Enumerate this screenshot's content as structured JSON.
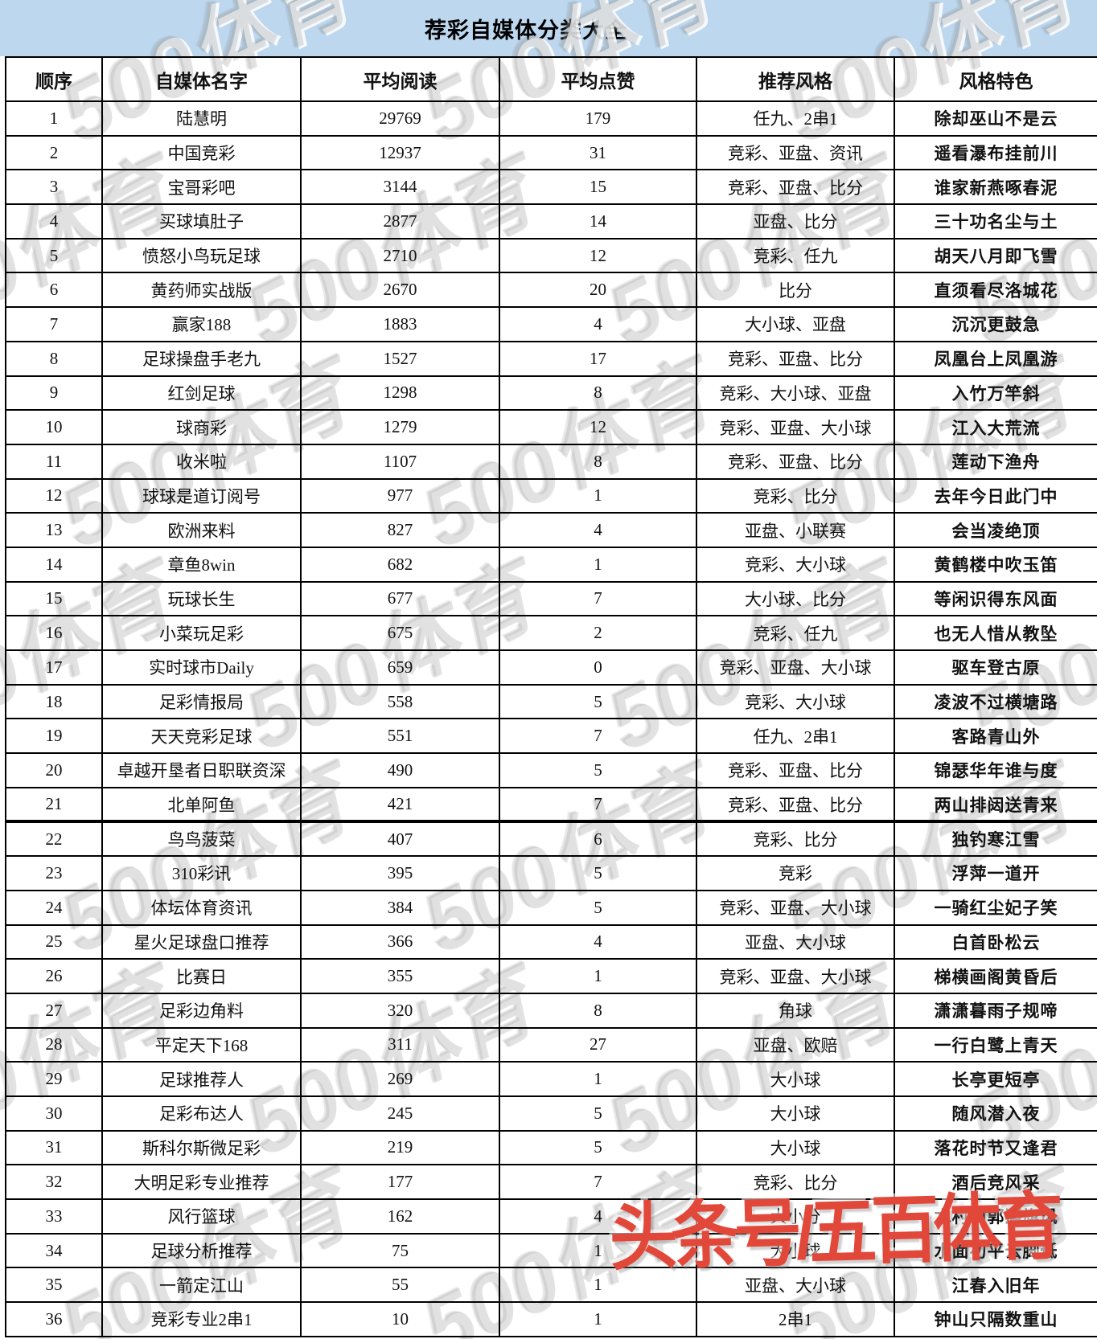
{
  "title": "荐彩自媒体分类大全",
  "columns": [
    "顺序",
    "自媒体名字",
    "平均阅读",
    "平均点赞",
    "推荐风格",
    "风格特色"
  ],
  "rows": [
    {
      "order": "1",
      "name": "陆慧明",
      "reads": "29769",
      "likes": "179",
      "style": "任九、2串1",
      "feature": "除却巫山不是云"
    },
    {
      "order": "2",
      "name": "中国竞彩",
      "reads": "12937",
      "likes": "31",
      "style": "竞彩、亚盘、资讯",
      "feature": "遥看瀑布挂前川"
    },
    {
      "order": "3",
      "name": "宝哥彩吧",
      "reads": "3144",
      "likes": "15",
      "style": "竞彩、亚盘、比分",
      "feature": "谁家新燕啄春泥"
    },
    {
      "order": "4",
      "name": "买球填肚子",
      "reads": "2877",
      "likes": "14",
      "style": "亚盘、比分",
      "feature": "三十功名尘与土"
    },
    {
      "order": "5",
      "name": "愤怒小鸟玩足球",
      "reads": "2710",
      "likes": "12",
      "style": "竞彩、任九",
      "feature": "胡天八月即飞雪"
    },
    {
      "order": "6",
      "name": "黄药师实战版",
      "reads": "2670",
      "likes": "20",
      "style": "比分",
      "feature": "直须看尽洛城花"
    },
    {
      "order": "7",
      "name": "赢家188",
      "reads": "1883",
      "likes": "4",
      "style": "大小球、亚盘",
      "feature": "沉沉更鼓急"
    },
    {
      "order": "8",
      "name": "足球操盘手老九",
      "reads": "1527",
      "likes": "17",
      "style": "竞彩、亚盘、比分",
      "feature": "凤凰台上凤凰游"
    },
    {
      "order": "9",
      "name": "红剑足球",
      "reads": "1298",
      "likes": "8",
      "style": "竞彩、大小球、亚盘",
      "feature": "入竹万竿斜"
    },
    {
      "order": "10",
      "name": "球商彩",
      "reads": "1279",
      "likes": "12",
      "style": "竞彩、亚盘、大小球",
      "feature": "江入大荒流"
    },
    {
      "order": "11",
      "name": "收米啦",
      "reads": "1107",
      "likes": "8",
      "style": "竞彩、亚盘、比分",
      "feature": "莲动下渔舟"
    },
    {
      "order": "12",
      "name": "球球是道订阅号",
      "reads": "977",
      "likes": "1",
      "style": "竞彩、比分",
      "feature": "去年今日此门中"
    },
    {
      "order": "13",
      "name": "欧洲来料",
      "reads": "827",
      "likes": "4",
      "style": "亚盘、小联赛",
      "feature": "会当凌绝顶"
    },
    {
      "order": "14",
      "name": "章鱼8win",
      "reads": "682",
      "likes": "1",
      "style": "竞彩、大小球",
      "feature": "黄鹤楼中吹玉笛"
    },
    {
      "order": "15",
      "name": "玩球长生",
      "reads": "677",
      "likes": "7",
      "style": "大小球、比分",
      "feature": "等闲识得东风面"
    },
    {
      "order": "16",
      "name": "小菜玩足彩",
      "reads": "675",
      "likes": "2",
      "style": "竞彩、任九",
      "feature": "也无人惜从教坠"
    },
    {
      "order": "17",
      "name": "实时球市Daily",
      "reads": "659",
      "likes": "0",
      "style": "竞彩、亚盘、大小球",
      "feature": "驱车登古原"
    },
    {
      "order": "18",
      "name": "足彩情报局",
      "reads": "558",
      "likes": "5",
      "style": "竞彩、大小球",
      "feature": "凌波不过横塘路"
    },
    {
      "order": "19",
      "name": "天天竞彩足球",
      "reads": "551",
      "likes": "7",
      "style": "任九、2串1",
      "feature": "客路青山外"
    },
    {
      "order": "20",
      "name": "卓越开垦者日职联资深",
      "reads": "490",
      "likes": "5",
      "style": "竞彩、亚盘、比分",
      "feature": "锦瑟华年谁与度"
    },
    {
      "order": "21",
      "name": "北单阿鱼",
      "reads": "421",
      "likes": "7",
      "style": "竞彩、亚盘、比分",
      "feature": "两山排闼送青来"
    },
    {
      "order": "22",
      "name": "鸟鸟菠菜",
      "reads": "407",
      "likes": "6",
      "style": "竞彩、比分",
      "feature": "独钓寒江雪"
    },
    {
      "order": "23",
      "name": "310彩讯",
      "reads": "395",
      "likes": "5",
      "style": "竞彩",
      "feature": "浮萍一道开"
    },
    {
      "order": "24",
      "name": "体坛体育资讯",
      "reads": "384",
      "likes": "5",
      "style": "竞彩、亚盘、大小球",
      "feature": "一骑红尘妃子笑"
    },
    {
      "order": "25",
      "name": "星火足球盘口推荐",
      "reads": "366",
      "likes": "4",
      "style": "亚盘、大小球",
      "feature": "白首卧松云"
    },
    {
      "order": "26",
      "name": "比赛日",
      "reads": "355",
      "likes": "1",
      "style": "竞彩、亚盘、大小球",
      "feature": "梯横画阁黄昏后"
    },
    {
      "order": "27",
      "name": "足彩边角料",
      "reads": "320",
      "likes": "8",
      "style": "角球",
      "feature": "潇潇暮雨子规啼"
    },
    {
      "order": "28",
      "name": "平定天下168",
      "reads": "311",
      "likes": "27",
      "style": "亚盘、欧赔",
      "feature": "一行白鹭上青天"
    },
    {
      "order": "29",
      "name": "足球推荐人",
      "reads": "269",
      "likes": "1",
      "style": "大小球",
      "feature": "长亭更短亭"
    },
    {
      "order": "30",
      "name": "足彩布达人",
      "reads": "245",
      "likes": "5",
      "style": "大小球",
      "feature": "随风潜入夜"
    },
    {
      "order": "31",
      "name": "斯科尔斯微足彩",
      "reads": "219",
      "likes": "5",
      "style": "大小球",
      "feature": "落花时节又逢君"
    },
    {
      "order": "32",
      "name": "大明足彩专业推荐",
      "reads": "177",
      "likes": "7",
      "style": "竞彩、比分",
      "feature": "酒后竞风采"
    },
    {
      "order": "33",
      "name": "风行篮球",
      "reads": "162",
      "likes": "4",
      "style": "大小分",
      "feature": "水村山郭酒旗风"
    },
    {
      "order": "34",
      "name": "足球分析推荐",
      "reads": "75",
      "likes": "1",
      "style": "大小球",
      "feature": "水面初平云脚低"
    },
    {
      "order": "35",
      "name": "一箭定江山",
      "reads": "55",
      "likes": "1",
      "style": "亚盘、大小球",
      "feature": "江春入旧年"
    },
    {
      "order": "36",
      "name": "竞彩专业2串1",
      "reads": "10",
      "likes": "1",
      "style": "2串1",
      "feature": "钟山只隔数重山"
    }
  ],
  "watermark": {
    "text": "500体育"
  },
  "footer_watermark": {
    "text": "头条号/五百体育",
    "color": "#e2483a"
  },
  "colors": {
    "title_bg": "#bdd7ee",
    "border": "#000000",
    "watermark_gray": "#a3a3a3"
  }
}
